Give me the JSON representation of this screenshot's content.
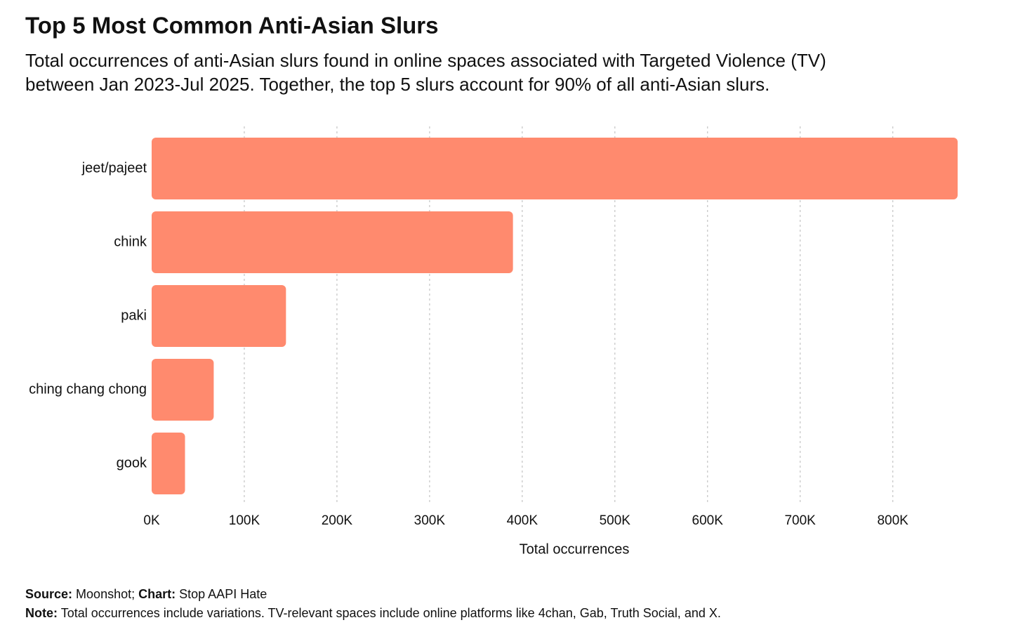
{
  "chart_data": {
    "type": "bar",
    "orientation": "horizontal",
    "title": "Top 5 Most Common Anti-Asian Slurs",
    "subtitle": [
      "Total occurrences of anti-Asian slurs found in online spaces associated with Targeted Violence (TV)",
      "between Jan 2023-Jul 2025. Together, the top 5 slurs account for 90% of all anti-Asian slurs."
    ],
    "categories": [
      "jeet/pajeet",
      "chink",
      "paki",
      "ching chang chong",
      "gook"
    ],
    "values": [
      870000,
      390000,
      145000,
      67000,
      36000
    ],
    "color": "#ff8a6e",
    "xlim": [
      0,
      870000
    ],
    "xticks": [
      {
        "value": 0,
        "label": "0K"
      },
      {
        "value": 100000,
        "label": "100K"
      },
      {
        "value": 200000,
        "label": "200K"
      },
      {
        "value": 300000,
        "label": "300K"
      },
      {
        "value": 400000,
        "label": "400K"
      },
      {
        "value": 500000,
        "label": "500K"
      },
      {
        "value": 600000,
        "label": "600K"
      },
      {
        "value": 700000,
        "label": "700K"
      },
      {
        "value": 800000,
        "label": "800K"
      }
    ],
    "xlabel": "Total occurrences",
    "grid": true,
    "source": {
      "label": "Source:",
      "text": "Moonshot;"
    },
    "credit": {
      "label": "Chart:",
      "text": "Stop AAPI Hate"
    },
    "note": {
      "label": "Note:",
      "text": "Total occurrences include variations. TV-relevant spaces include online platforms like 4chan, Gab, Truth Social, and X."
    }
  }
}
